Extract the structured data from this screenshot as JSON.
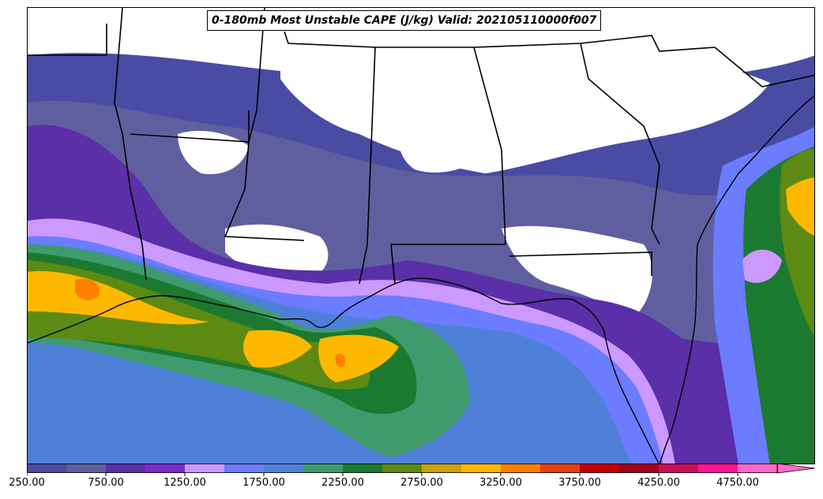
{
  "title": "0-180mb Most Unstable CAPE (J/kg) Valid: 202105110000f007",
  "colorbar": {
    "levels": [
      250,
      500,
      750,
      1000,
      1250,
      1500,
      1750,
      2000,
      2250,
      2500,
      2750,
      3000,
      3250,
      3500,
      3750,
      4000,
      4250,
      4500,
      4750,
      5000
    ],
    "colors": [
      "#4a4ba3",
      "#5f5fa0",
      "#5a2fa8",
      "#7a2cc9",
      "#cc99ff",
      "#6b7cff",
      "#4f80d8",
      "#3f9a6e",
      "#1b7a2f",
      "#5c8a12",
      "#c8a010",
      "#ffb800",
      "#ff8000",
      "#e84010",
      "#c80000",
      "#a00020",
      "#c8105a",
      "#ff1493",
      "#ff69c8"
    ],
    "extend": "max",
    "tick_labels": [
      "250.00",
      "750.00",
      "1250.00",
      "1750.00",
      "2250.00",
      "2750.00",
      "3250.00",
      "3750.00",
      "4250.00",
      "4750.00"
    ]
  }
}
